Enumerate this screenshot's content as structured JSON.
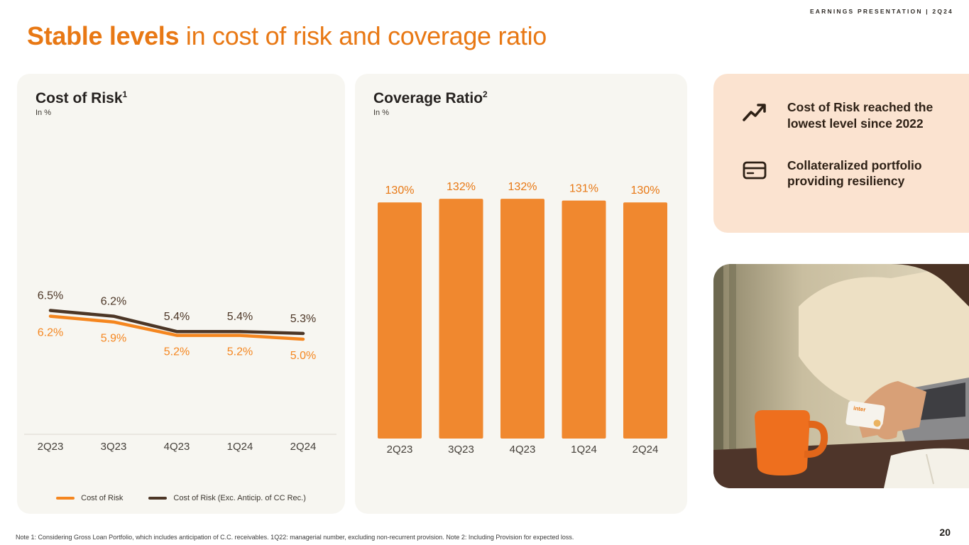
{
  "header": {
    "label": "EARNINGS PRESENTATION | 2Q24"
  },
  "title": {
    "highlight": "Stable levels",
    "rest": " in cost of risk and coverage ratio"
  },
  "panels": {
    "cost_sup": "1",
    "coverage_sup": "2"
  },
  "chart_data": [
    {
      "type": "line",
      "title": "Cost of Risk",
      "ylabel": "In %",
      "categories": [
        "2Q23",
        "3Q23",
        "4Q23",
        "1Q24",
        "2Q24"
      ],
      "unit": "%",
      "ylim": [
        4.5,
        7.0
      ],
      "grid": false,
      "legend_position": "bottom",
      "series": [
        {
          "name": "Cost of Risk (Exc. Anticip. of CC Rec.)",
          "values": [
            6.5,
            6.2,
            5.4,
            5.4,
            5.3
          ],
          "color": "#4C3626",
          "label_position": "above"
        },
        {
          "name": "Cost of Risk",
          "values": [
            6.2,
            5.9,
            5.2,
            5.2,
            5.0
          ],
          "color": "#F5861F",
          "label_position": "below"
        }
      ]
    },
    {
      "type": "bar",
      "title": "Coverage Ratio",
      "ylabel": "In %",
      "categories": [
        "2Q23",
        "3Q23",
        "4Q23",
        "1Q24",
        "2Q24"
      ],
      "values": [
        130,
        132,
        132,
        131,
        130
      ],
      "unit": "%",
      "bar_color": "#F0882F",
      "ylim": [
        0,
        150
      ],
      "grid": false
    }
  ],
  "callouts": {
    "items": [
      {
        "icon": "trend-up-icon",
        "text": "Cost of Risk reached the lowest level since 2022"
      },
      {
        "icon": "credit-card-icon",
        "text": "Collateralized portfolio providing resiliency"
      }
    ]
  },
  "photo": {
    "card_label": "inter"
  },
  "footer": {
    "note": "Note 1: Considering Gross Loan Portfolio, which includes anticipation of C.C. receivables. 1Q22: managerial number, excluding non-recurrent provision. Note 2: Including Provision for expected loss.",
    "page_number": "20"
  },
  "colors": {
    "accent": "#E87814",
    "bar": "#F0882F",
    "line_main": "#F5861F",
    "line_secondary": "#4C3626",
    "panel_bg": "#F7F6F1",
    "callout_bg": "#FBE3D0",
    "text_dark": "#2A2420"
  }
}
